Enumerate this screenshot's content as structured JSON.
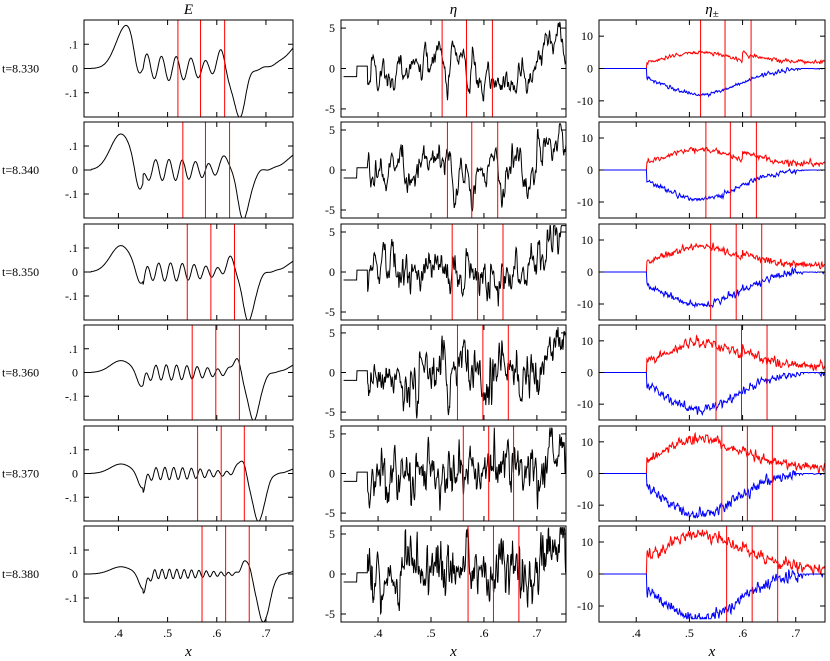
{
  "chart_data": {
    "type": "line",
    "layout": "6 rows x 3 columns of panels",
    "x_axis": {
      "label": "x",
      "range": [
        0.33,
        0.755
      ],
      "ticks": [
        0.4,
        0.5,
        0.6,
        0.7
      ],
      "tick_labels": [
        ".4",
        ".5",
        ".6",
        ".7"
      ]
    },
    "columns": [
      {
        "key": "E",
        "title": "E",
        "title_sub": "",
        "ylim": [
          -0.2,
          0.2
        ],
        "yticks": [
          0.1,
          0.0,
          -0.1
        ],
        "ytick_labels": [
          ".1",
          "0",
          "-.1"
        ],
        "series_colors": [
          "#000000"
        ]
      },
      {
        "key": "eta",
        "title": "η",
        "title_sub": "",
        "ylim": [
          -6,
          6
        ],
        "yticks": [
          5,
          0,
          -5
        ],
        "ytick_labels": [
          "5",
          "0",
          "-5"
        ],
        "series_colors": [
          "#000000"
        ]
      },
      {
        "key": "eta_pm",
        "title": "η",
        "title_sub": "±",
        "ylim": [
          -15,
          15
        ],
        "yticks": [
          10,
          0,
          -10
        ],
        "ytick_labels": [
          "10",
          "0",
          "-10"
        ],
        "series_colors": [
          "#ff0000",
          "#0000ff"
        ]
      }
    ],
    "rows": [
      {
        "label": "t=8.330",
        "vlines": [
          0.521,
          0.567,
          0.616
        ]
      },
      {
        "label": "t=8.340",
        "vlines": [
          0.531,
          0.577,
          0.626
        ]
      },
      {
        "label": "t=8.350",
        "vlines": [
          0.54,
          0.588,
          0.636
        ]
      },
      {
        "label": "t=8.360",
        "vlines": [
          0.55,
          0.598,
          0.646
        ]
      },
      {
        "label": "t=8.370",
        "vlines": [
          0.561,
          0.609,
          0.656
        ]
      },
      {
        "label": "t=8.380",
        "vlines": [
          0.57,
          0.618,
          0.666
        ]
      }
    ],
    "vline_color": "#ff0000",
    "grid": false
  }
}
